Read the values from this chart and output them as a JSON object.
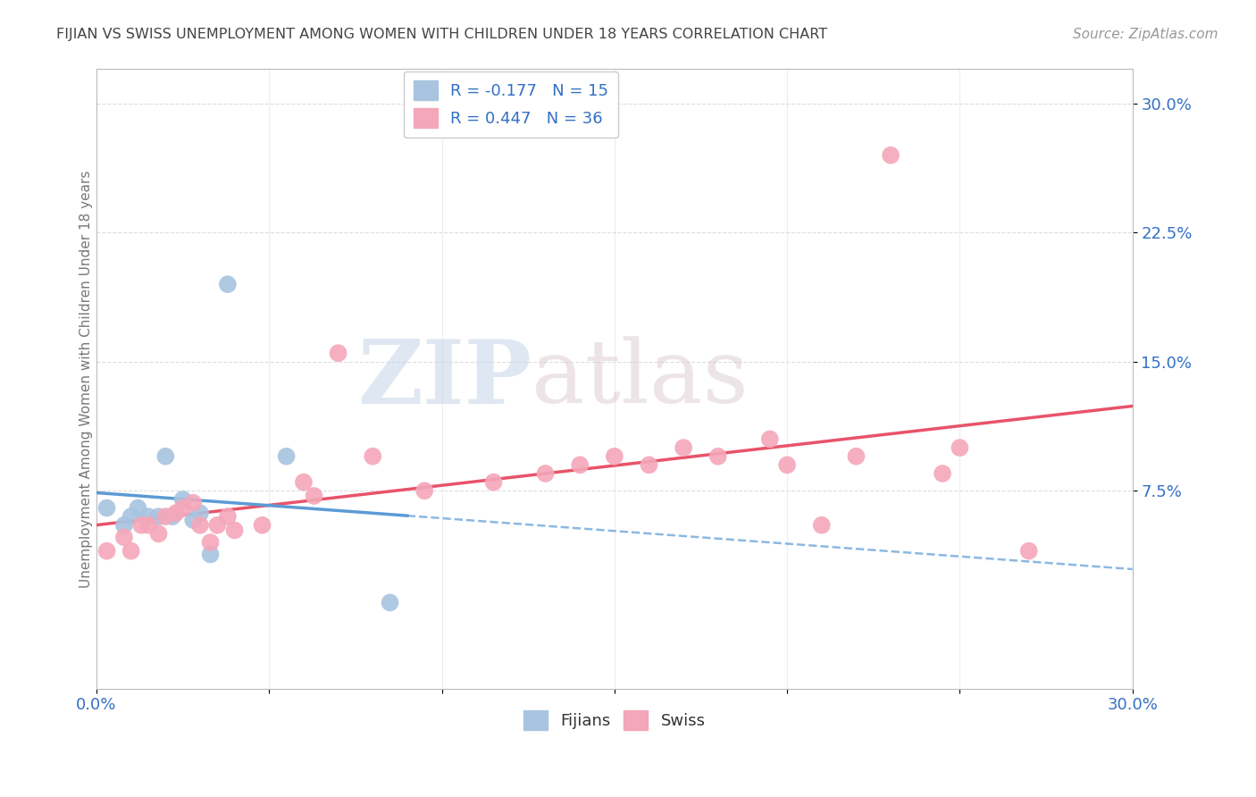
{
  "title": "FIJIAN VS SWISS UNEMPLOYMENT AMONG WOMEN WITH CHILDREN UNDER 18 YEARS CORRELATION CHART",
  "source": "Source: ZipAtlas.com",
  "ylabel": "Unemployment Among Women with Children Under 18 years",
  "xlim": [
    0.0,
    0.3
  ],
  "ylim": [
    -0.04,
    0.32
  ],
  "xticks": [
    0.0,
    0.05,
    0.1,
    0.15,
    0.2,
    0.25,
    0.3
  ],
  "xtick_labels": [
    "0.0%",
    "",
    "",
    "",
    "",
    "",
    "30.0%"
  ],
  "yticks": [
    0.075,
    0.15,
    0.225,
    0.3
  ],
  "ytick_labels": [
    "7.5%",
    "15.0%",
    "22.5%",
    "30.0%"
  ],
  "fijian_color": "#a8c4e0",
  "swiss_color": "#f4a7b9",
  "fijian_line_color": "#5b9bd5",
  "swiss_line_color": "#e8536a",
  "legend_fijian_R": "-0.177",
  "legend_fijian_N": "15",
  "legend_swiss_R": "0.447",
  "legend_swiss_N": "36",
  "fijian_x": [
    0.003,
    0.008,
    0.01,
    0.012,
    0.015,
    0.018,
    0.02,
    0.022,
    0.025,
    0.028,
    0.03,
    0.033,
    0.038,
    0.055,
    0.085
  ],
  "fijian_y": [
    0.065,
    0.055,
    0.06,
    0.065,
    0.06,
    0.06,
    0.095,
    0.06,
    0.07,
    0.058,
    0.062,
    0.038,
    0.195,
    0.095,
    0.01
  ],
  "swiss_x": [
    0.003,
    0.008,
    0.01,
    0.013,
    0.015,
    0.018,
    0.02,
    0.023,
    0.025,
    0.028,
    0.03,
    0.033,
    0.035,
    0.038,
    0.04,
    0.048,
    0.06,
    0.063,
    0.07,
    0.08,
    0.095,
    0.115,
    0.13,
    0.14,
    0.15,
    0.16,
    0.17,
    0.18,
    0.195,
    0.2,
    0.21,
    0.22,
    0.23,
    0.245,
    0.25,
    0.27
  ],
  "swiss_y": [
    0.04,
    0.048,
    0.04,
    0.055,
    0.055,
    0.05,
    0.06,
    0.062,
    0.065,
    0.068,
    0.055,
    0.045,
    0.055,
    0.06,
    0.052,
    0.055,
    0.08,
    0.072,
    0.155,
    0.095,
    0.075,
    0.08,
    0.085,
    0.09,
    0.095,
    0.09,
    0.1,
    0.095,
    0.105,
    0.09,
    0.055,
    0.095,
    0.27,
    0.085,
    0.1,
    0.04
  ],
  "watermark_zip": "ZIP",
  "watermark_atlas": "atlas",
  "background_color": "#ffffff",
  "grid_color": "#dddddd",
  "text_color": "#3370c4",
  "title_color": "#444444",
  "label_color": "#777777"
}
